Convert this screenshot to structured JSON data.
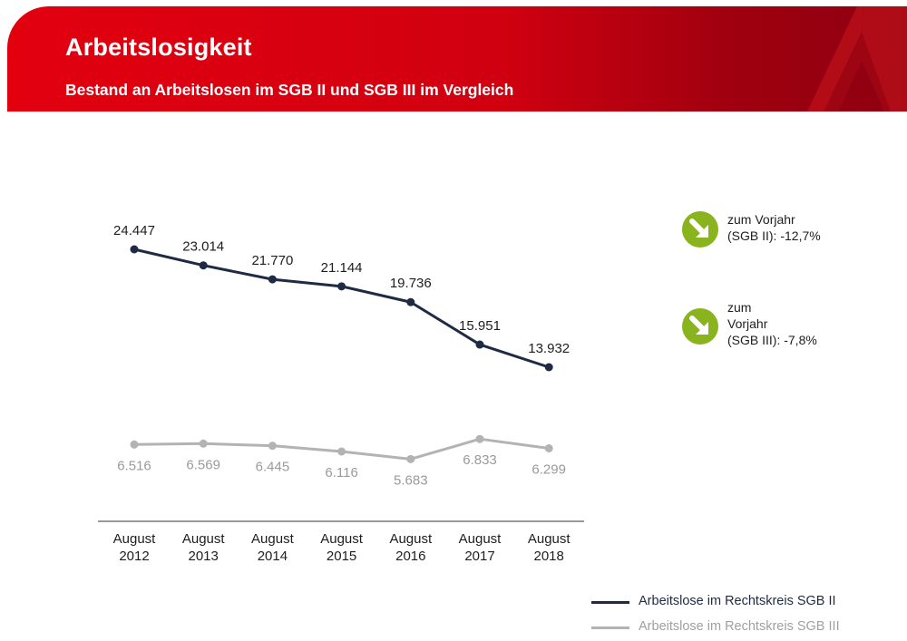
{
  "header": {
    "title": "Arbeitslosigkeit",
    "subtitle": "Bestand an Arbeitslosen im SGB II und SGB III im Vergleich"
  },
  "colors": {
    "accent_red": "#e2000f",
    "series_sgb2": "#1f2a44",
    "series_sgb3": "#b3b3b3",
    "indicator_green": "#8ab41e"
  },
  "indicators": [
    {
      "lines": [
        "zum Vorjahr",
        "(SGB II):  -12,7%"
      ],
      "icon": "arrow-down-right-icon"
    },
    {
      "lines": [
        "zum",
        "Vorjahr",
        "(SGB III):  -7,8%"
      ],
      "icon": "arrow-down-right-icon"
    }
  ],
  "chart_data": {
    "type": "line",
    "title": "Bestand an Arbeitslosen im SGB II und SGB III im Vergleich",
    "categories": [
      [
        "August",
        "2012"
      ],
      [
        "August",
        "2013"
      ],
      [
        "August",
        "2014"
      ],
      [
        "August",
        "2015"
      ],
      [
        "August",
        "2016"
      ],
      [
        "August",
        "2017"
      ],
      [
        "August",
        "2018"
      ]
    ],
    "series": [
      {
        "name": "Arbeitslose im Rechtskreis SGB II",
        "values": [
          24447,
          23014,
          21770,
          21144,
          19736,
          15951,
          13932
        ],
        "labels": [
          "24.447",
          "23.014",
          "21.770",
          "21.144",
          "19.736",
          "15.951",
          "13.932"
        ]
      },
      {
        "name": "Arbeitslose im Rechtskreis SGB III",
        "values": [
          6516,
          6569,
          6445,
          6116,
          5683,
          6833,
          6299
        ],
        "labels": [
          "6.516",
          "6.569",
          "6.445",
          "6.116",
          "5.683",
          "6.833",
          "6.299"
        ]
      }
    ],
    "xlabel": "",
    "ylabel": "",
    "grid": false,
    "legend": "bottom-right"
  }
}
